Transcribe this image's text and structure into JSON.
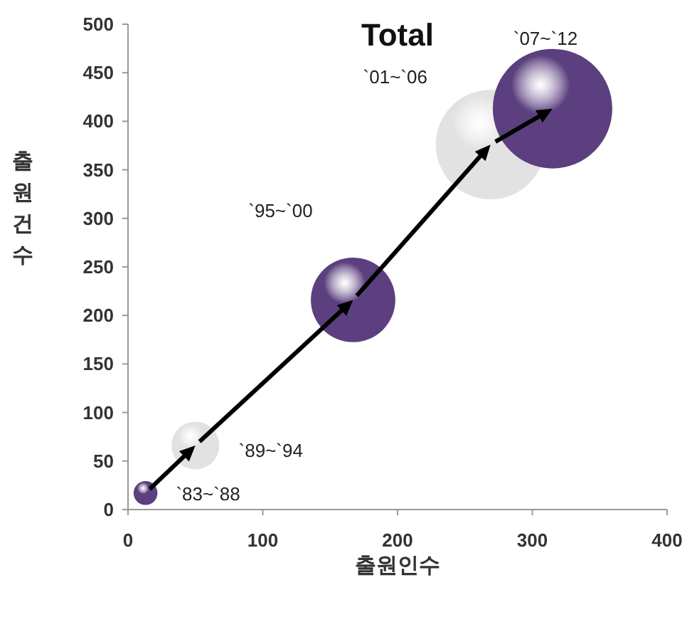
{
  "chart_data": {
    "type": "bubble",
    "title": "Total",
    "xlabel": "출원인수",
    "ylabel": "출원건수",
    "x": [
      13,
      50,
      167,
      269,
      315
    ],
    "series": [
      {
        "colors": [
          "#5b3f7e",
          "#e2e2e2",
          "#5b3f7e",
          "#e2e2e2",
          "#5b3f7e"
        ],
        "values": [
          17,
          66,
          216,
          376,
          413
        ],
        "sizes": [
          0.04,
          0.16,
          0.5,
          0.84,
          1
        ]
      }
    ],
    "annotations": [
      "`83~`88",
      "`89~`94",
      "`95~`00",
      "`01~`06",
      "`07~`12"
    ],
    "xlim": [
      0,
      400
    ],
    "xticks": [
      0,
      100,
      200,
      300,
      400
    ],
    "ylim": [
      0,
      500
    ],
    "yticks": [
      0,
      50,
      100,
      150,
      200,
      250,
      300,
      350,
      400,
      450,
      500
    ],
    "grid": false
  }
}
